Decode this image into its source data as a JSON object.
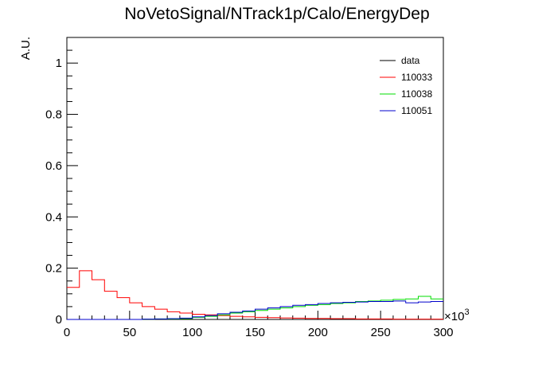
{
  "chart_data": {
    "type": "line",
    "title": "NoVetoSignal/NTrack1p/Calo/EnergyDep",
    "xlabel": "",
    "ylabel": "A.U.",
    "x_multiplier_label": "×10",
    "x_multiplier_exponent": "3",
    "xlim": [
      0,
      300
    ],
    "ylim": [
      0,
      1.1
    ],
    "x_ticks": [
      0,
      50,
      100,
      150,
      200,
      250,
      300
    ],
    "x_tick_labels": [
      "0",
      "50",
      "100",
      "150",
      "200",
      "250",
      "300"
    ],
    "y_ticks": [
      0,
      0.2,
      0.4,
      0.6,
      0.8,
      1
    ],
    "y_tick_labels": [
      "0",
      "0.2",
      "0.4",
      "0.6",
      "0.8",
      "1"
    ],
    "bin_width": 10,
    "bin_edges_start": 0,
    "legend_position": "top-right",
    "series": [
      {
        "name": "data",
        "color": "#000000",
        "values": [
          0,
          0,
          0,
          0,
          0,
          0,
          0,
          0,
          0,
          0,
          0,
          0,
          0,
          0,
          0,
          0,
          0,
          0,
          0,
          0,
          0,
          0,
          0,
          0,
          0,
          0,
          0,
          0,
          0,
          0
        ]
      },
      {
        "name": "110033",
        "color": "#ff0000",
        "values": [
          0.125,
          0.19,
          0.155,
          0.11,
          0.085,
          0.065,
          0.05,
          0.04,
          0.03,
          0.025,
          0.02,
          0.018,
          0.015,
          0.012,
          0.01,
          0.008,
          0.007,
          0.006,
          0.005,
          0.004,
          0.004,
          0.003,
          0.003,
          0.002,
          0.002,
          0.002,
          0.001,
          0.001,
          0.001,
          0.001
        ]
      },
      {
        "name": "110038",
        "color": "#00dd00",
        "values": [
          0,
          0,
          0,
          0,
          0,
          0,
          0.001,
          0.002,
          0.002,
          0.003,
          0.008,
          0.012,
          0.018,
          0.025,
          0.03,
          0.035,
          0.04,
          0.045,
          0.05,
          0.055,
          0.058,
          0.062,
          0.065,
          0.07,
          0.072,
          0.075,
          0.078,
          0.08,
          0.09,
          0.08
        ]
      },
      {
        "name": "110051",
        "color": "#0000cc",
        "values": [
          0,
          0,
          0,
          0,
          0,
          0,
          0.001,
          0.002,
          0.003,
          0.005,
          0.01,
          0.015,
          0.022,
          0.028,
          0.033,
          0.04,
          0.045,
          0.05,
          0.055,
          0.058,
          0.062,
          0.065,
          0.067,
          0.068,
          0.07,
          0.07,
          0.072,
          0.065,
          0.068,
          0.07
        ]
      }
    ]
  }
}
